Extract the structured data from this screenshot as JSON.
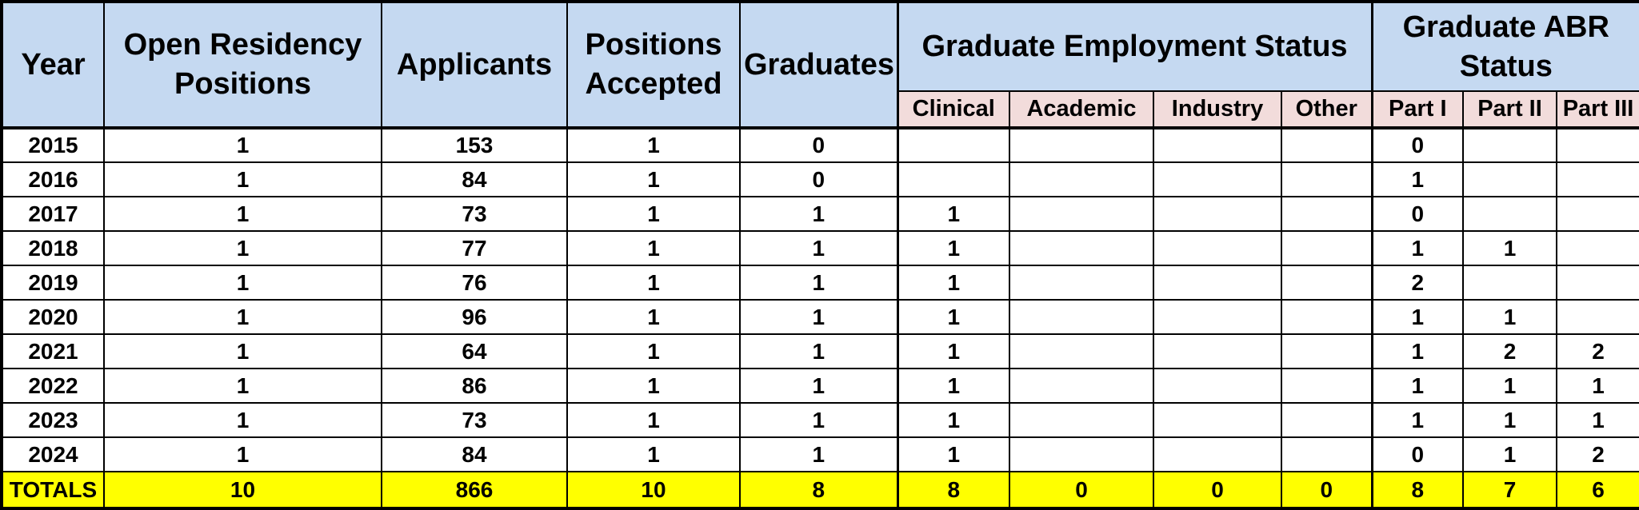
{
  "colors": {
    "header_blue": "#c5d9f1",
    "subheader_pink": "#f2dcdb",
    "totals_yellow": "#ffff00",
    "border": "#000000"
  },
  "chart_data": {
    "type": "table",
    "columns": [
      "Year",
      "Open Residency Positions",
      "Applicants",
      "Positions Accepted",
      "Graduates",
      "Clinical",
      "Academic",
      "Industry",
      "Other",
      "Part I",
      "Part II",
      "Part III"
    ],
    "column_groups": [
      {
        "label": "Graduate Employment Status",
        "span": 4
      },
      {
        "label": "Graduate ABR Status",
        "span": 3
      }
    ],
    "rows": [
      [
        "2015",
        "1",
        "153",
        "1",
        "0",
        "",
        "",
        "",
        "",
        "0",
        "",
        ""
      ],
      [
        "2016",
        "1",
        "84",
        "1",
        "0",
        "",
        "",
        "",
        "",
        "1",
        "",
        ""
      ],
      [
        "2017",
        "1",
        "73",
        "1",
        "1",
        "1",
        "",
        "",
        "",
        "0",
        "",
        ""
      ],
      [
        "2018",
        "1",
        "77",
        "1",
        "1",
        "1",
        "",
        "",
        "",
        "1",
        "1",
        ""
      ],
      [
        "2019",
        "1",
        "76",
        "1",
        "1",
        "1",
        "",
        "",
        "",
        "2",
        "",
        ""
      ],
      [
        "2020",
        "1",
        "96",
        "1",
        "1",
        "1",
        "",
        "",
        "",
        "1",
        "1",
        ""
      ],
      [
        "2021",
        "1",
        "64",
        "1",
        "1",
        "1",
        "",
        "",
        "",
        "1",
        "2",
        "2"
      ],
      [
        "2022",
        "1",
        "86",
        "1",
        "1",
        "1",
        "",
        "",
        "",
        "1",
        "1",
        "1"
      ],
      [
        "2023",
        "1",
        "73",
        "1",
        "1",
        "1",
        "",
        "",
        "",
        "1",
        "1",
        "1"
      ],
      [
        "2024",
        "1",
        "84",
        "1",
        "1",
        "1",
        "",
        "",
        "",
        "0",
        "1",
        "2"
      ]
    ],
    "totals": [
      "TOTALS",
      "10",
      "866",
      "10",
      "8",
      "8",
      "0",
      "0",
      "0",
      "8",
      "7",
      "6"
    ]
  }
}
